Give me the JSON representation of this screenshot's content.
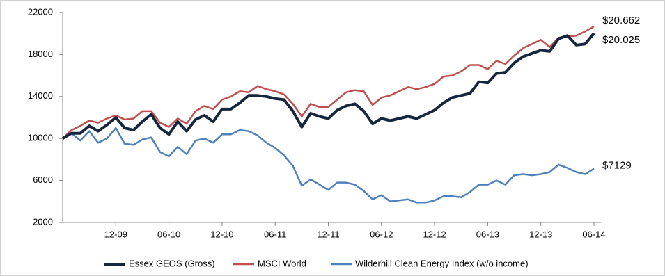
{
  "chart_data": {
    "type": "line",
    "categories": [
      null,
      null,
      null,
      null,
      null,
      null,
      "12-09",
      null,
      null,
      null,
      null,
      null,
      "06-10",
      null,
      null,
      null,
      null,
      null,
      "12-10",
      null,
      null,
      null,
      null,
      null,
      "06-11",
      null,
      null,
      null,
      null,
      null,
      "12-11",
      null,
      null,
      null,
      null,
      null,
      "06-12",
      null,
      null,
      null,
      null,
      null,
      "12-12",
      null,
      null,
      null,
      null,
      null,
      "06-13",
      null,
      null,
      null,
      null,
      null,
      "12-13",
      null,
      null,
      null,
      null,
      null,
      "06-14"
    ],
    "series": [
      {
        "name": "Essex GEOS (Gross)",
        "color": "#17263f",
        "width": 4,
        "values": [
          10000,
          10500,
          10500,
          11200,
          10700,
          11300,
          12000,
          11000,
          10800,
          11600,
          12300,
          11000,
          10400,
          11600,
          10700,
          11800,
          12200,
          11600,
          12800,
          12800,
          13400,
          14100,
          14100,
          14000,
          13800,
          13700,
          12600,
          11100,
          12400,
          12100,
          11900,
          12700,
          13100,
          13300,
          12600,
          11400,
          11900,
          11700,
          11900,
          12100,
          11900,
          12300,
          12700,
          13400,
          13900,
          14100,
          14300,
          15400,
          15300,
          16200,
          16300,
          17200,
          17800,
          18100,
          18400,
          18300,
          19500,
          19800,
          18900,
          19000,
          20025
        ]
      },
      {
        "name": "MSCI World",
        "color": "#c0504d",
        "width": 2.5,
        "values": [
          10000,
          10800,
          11200,
          11700,
          11500,
          11900,
          12200,
          11800,
          11900,
          12600,
          12600,
          11500,
          11100,
          11900,
          11400,
          12600,
          13100,
          12800,
          13700,
          14000,
          14500,
          14400,
          15000,
          14700,
          14500,
          14200,
          13300,
          12100,
          13300,
          13000,
          13000,
          13700,
          14400,
          14600,
          14500,
          13200,
          13900,
          14100,
          14500,
          14900,
          14700,
          14900,
          15200,
          15900,
          16000,
          16400,
          17000,
          17000,
          16600,
          17400,
          17100,
          17900,
          18600,
          19000,
          19400,
          18700,
          19600,
          19700,
          19800,
          20200,
          20662
        ]
      },
      {
        "name": "Wilderhill Clean Energy Index (w/o income)",
        "color": "#4f81bd",
        "width": 2.5,
        "values": [
          10000,
          10500,
          9800,
          10700,
          9600,
          10000,
          11000,
          9500,
          9400,
          9900,
          10100,
          8700,
          8300,
          9200,
          8500,
          9800,
          10000,
          9600,
          10400,
          10400,
          10800,
          10700,
          10300,
          9600,
          9100,
          8400,
          7400,
          5500,
          6100,
          5600,
          5100,
          5800,
          5800,
          5600,
          5000,
          4200,
          4600,
          4000,
          4100,
          4200,
          3900,
          3900,
          4100,
          4500,
          4500,
          4400,
          4900,
          5600,
          5600,
          6000,
          5600,
          6500,
          6600,
          6500,
          6600,
          6800,
          7500,
          7200,
          6800,
          6600,
          7129
        ]
      }
    ],
    "annotations": [
      {
        "text": "$20.662",
        "color": "#c0504d"
      },
      {
        "text": "$20.025",
        "color": "#000000"
      },
      {
        "text": "$7129",
        "color": "#4f81bd"
      }
    ],
    "ylim": [
      2000,
      22000
    ],
    "yticks": [
      2000,
      6000,
      10000,
      14000,
      18000,
      22000
    ],
    "grid": false,
    "legend": "bottom"
  }
}
